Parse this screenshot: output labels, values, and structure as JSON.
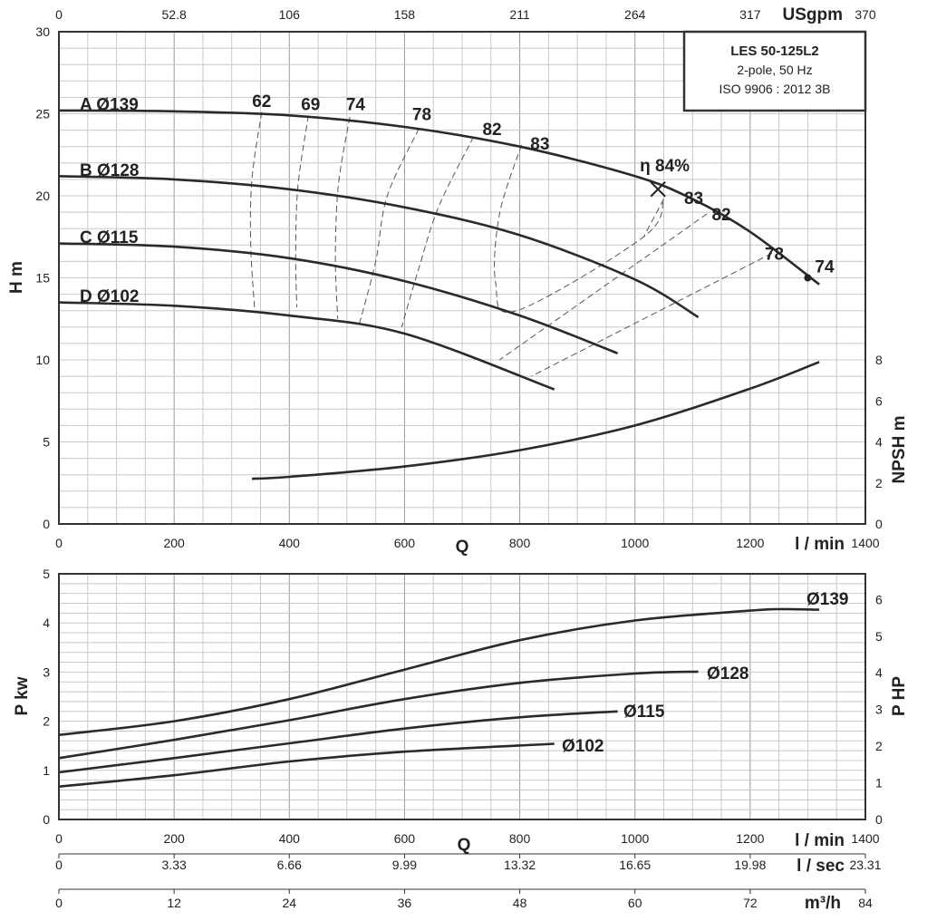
{
  "chart_data": [
    {
      "type": "line",
      "name": "head-chart",
      "model_box": {
        "model": "LES 50-125L2",
        "line2": "2-pole, 50 Hz",
        "line3": "ISO 9906 : 2012 3B"
      },
      "x_axis_bottom": {
        "label": "Q",
        "unit": "l / min",
        "range": [
          0,
          1400
        ],
        "ticks": [
          0,
          200,
          400,
          600,
          800,
          1000,
          1200,
          1400
        ]
      },
      "x_axis_top": {
        "unit": "USgpm",
        "ticks": [
          "0",
          "52.8",
          "106",
          "158",
          "211",
          "264",
          "317",
          "370"
        ]
      },
      "y_axis_left": {
        "label": "H m",
        "range": [
          0,
          30
        ],
        "ticks": [
          0,
          5,
          10,
          15,
          20,
          25,
          30
        ]
      },
      "y_axis_right": {
        "label": "NPSH m",
        "range": [
          0,
          8
        ],
        "ticks": [
          0,
          2,
          4,
          6,
          8
        ]
      },
      "grid": true,
      "series": [
        {
          "name": "A Ø139",
          "x": [
            0,
            200,
            400,
            600,
            800,
            1000,
            1100,
            1200,
            1320
          ],
          "y": [
            25.2,
            25.15,
            24.9,
            24.2,
            23.0,
            21.2,
            19.8,
            17.8,
            14.6
          ]
        },
        {
          "name": "B Ø128",
          "x": [
            0,
            200,
            400,
            600,
            800,
            1000,
            1110
          ],
          "y": [
            21.2,
            21.0,
            20.4,
            19.3,
            17.6,
            14.9,
            12.6
          ]
        },
        {
          "name": "C Ø115",
          "x": [
            0,
            200,
            400,
            600,
            800,
            970
          ],
          "y": [
            17.1,
            16.9,
            16.2,
            14.8,
            12.7,
            10.4
          ]
        },
        {
          "name": "D Ø102",
          "x": [
            0,
            200,
            400,
            600,
            860
          ],
          "y": [
            13.5,
            13.3,
            12.7,
            11.6,
            8.2
          ]
        }
      ],
      "npsh": {
        "x": [
          335,
          400,
          600,
          800,
          1000,
          1200,
          1320
        ],
        "y": [
          2.2,
          2.3,
          2.8,
          3.6,
          4.8,
          6.6,
          7.9
        ]
      },
      "efficiency_lines": [
        {
          "label": "62",
          "label_at": [
            352,
            25.8
          ],
          "points": [
            [
              352,
              25.1
            ],
            [
              335,
              21.0
            ],
            [
              333,
              17.0
            ],
            [
              340,
              13.0
            ]
          ]
        },
        {
          "label": "69",
          "label_at": [
            437,
            25.6
          ],
          "points": [
            [
              433,
              24.9
            ],
            [
              415,
              20.6
            ],
            [
              411,
              16.5
            ],
            [
              413,
              13.2
            ]
          ]
        },
        {
          "label": "74",
          "label_at": [
            515,
            25.6
          ],
          "points": [
            [
              505,
              24.8
            ],
            [
              485,
              20.6
            ],
            [
              480,
              16.2
            ],
            [
              484,
              12.5
            ]
          ]
        },
        {
          "label": "78",
          "label_at": [
            630,
            25.0
          ],
          "points": [
            [
              625,
              24.1
            ],
            [
              570,
              20.0
            ],
            [
              550,
              16.0
            ],
            [
              520,
              12.0
            ]
          ]
        },
        {
          "label": "82",
          "label_at": [
            752,
            24.1
          ],
          "points": [
            [
              720,
              23.6
            ],
            [
              660,
              19.4
            ],
            [
              625,
              15.6
            ],
            [
              595,
              12.0
            ]
          ]
        },
        {
          "label": "83",
          "label_at": [
            835,
            23.2
          ],
          "points": [
            [
              803,
              23.1
            ],
            [
              765,
              18.9
            ],
            [
              758,
              14.7
            ],
            [
              795,
              13.0
            ],
            [
              1015,
              17.5
            ],
            [
              1050,
              19.8
            ]
          ]
        },
        {
          "label": "83",
          "label_at": [
            1102,
            19.9
          ],
          "points": [
            [
              1050,
              19.8
            ],
            [
              1015,
              17.5
            ]
          ]
        },
        {
          "label": "82",
          "label_at": [
            1150,
            18.9
          ],
          "points": [
            [
              1125,
              18.9
            ],
            [
              765,
              10.0
            ]
          ]
        },
        {
          "label": "78",
          "label_at": [
            1242,
            16.5
          ],
          "points": [
            [
              1238,
              16.5
            ],
            [
              820,
              9.0
            ]
          ]
        }
      ],
      "bep": {
        "label": "η 84%",
        "x": 1040,
        "y": 20.4
      },
      "end_point": {
        "label": "74",
        "x": 1300,
        "y": 15.0
      }
    },
    {
      "type": "line",
      "name": "power-chart",
      "x_axis_bottom": {
        "label": "Q",
        "unit": "l / min",
        "range": [
          0,
          1400
        ],
        "ticks": [
          0,
          200,
          400,
          600,
          800,
          1000,
          1200,
          1400
        ]
      },
      "x_axis_lsec": {
        "unit": "l / sec",
        "ticks": [
          "0",
          "3.33",
          "6.66",
          "9.99",
          "13.32",
          "16.65",
          "19.98",
          "23.31"
        ]
      },
      "x_axis_m3h": {
        "unit": "m³/h",
        "ticks": [
          "0",
          "12",
          "24",
          "36",
          "48",
          "60",
          "72",
          "84"
        ]
      },
      "y_axis_left": {
        "label": "P kw",
        "range": [
          0,
          5
        ],
        "ticks": [
          0,
          1,
          2,
          3,
          4,
          5
        ]
      },
      "y_axis_right": {
        "label": "P HP",
        "range": [
          0,
          6.7
        ],
        "ticks": [
          0,
          1,
          2,
          3,
          4,
          5,
          6
        ]
      },
      "grid": true,
      "series": [
        {
          "name": "Ø139",
          "x": [
            0,
            200,
            400,
            600,
            800,
            1000,
            1200,
            1250,
            1320
          ],
          "y": [
            1.72,
            2.0,
            2.45,
            3.05,
            3.65,
            4.05,
            4.25,
            4.28,
            4.27
          ]
        },
        {
          "name": "Ø128",
          "x": [
            0,
            200,
            400,
            600,
            800,
            1000,
            1110
          ],
          "y": [
            1.25,
            1.62,
            2.02,
            2.45,
            2.78,
            2.97,
            3.01
          ]
        },
        {
          "name": "Ø115",
          "x": [
            0,
            200,
            400,
            600,
            800,
            970
          ],
          "y": [
            0.96,
            1.25,
            1.55,
            1.85,
            2.08,
            2.2
          ]
        },
        {
          "name": "Ø102",
          "x": [
            0,
            200,
            400,
            600,
            860
          ],
          "y": [
            0.67,
            0.9,
            1.18,
            1.38,
            1.54
          ]
        }
      ]
    }
  ]
}
